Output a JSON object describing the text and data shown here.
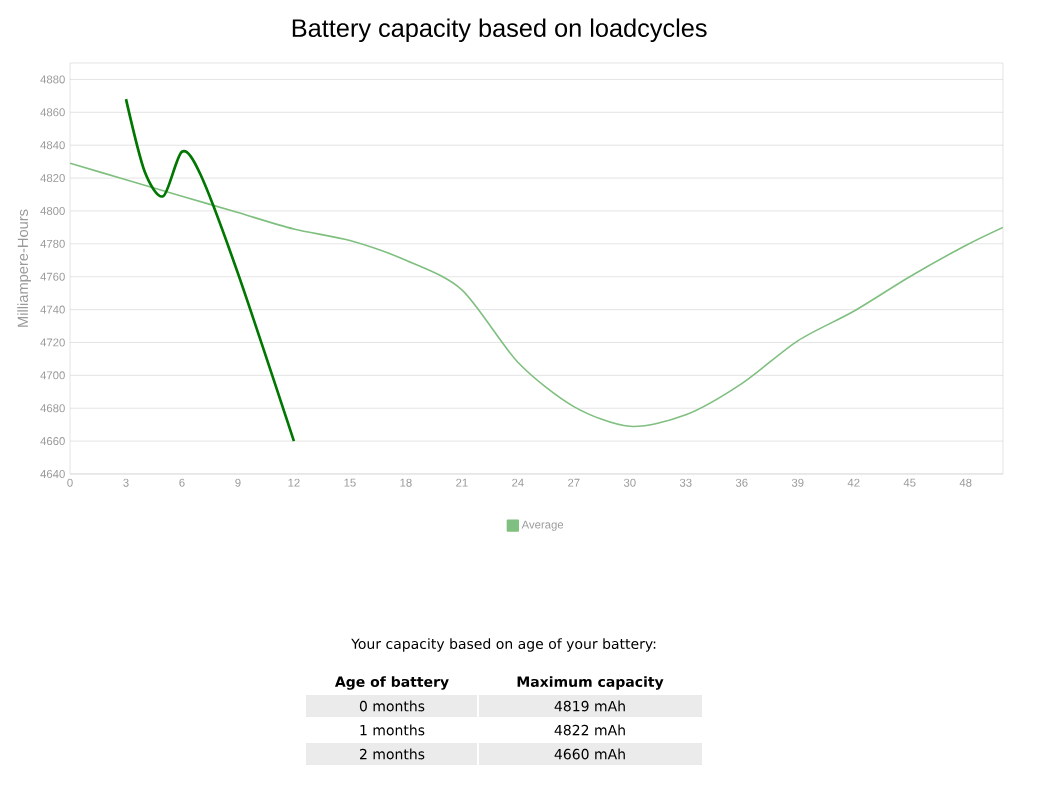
{
  "chart_data": [
    {
      "type": "line",
      "title": "Battery capacity based on loadcycles",
      "ylabel": "Milliampere-Hours",
      "xlim": [
        0,
        50
      ],
      "ylim": [
        4640,
        4890
      ],
      "xticks": [
        0,
        3,
        6,
        9,
        12,
        15,
        18,
        21,
        24,
        27,
        30,
        33,
        36,
        39,
        42,
        45,
        48
      ],
      "yticks": [
        4640,
        4660,
        4680,
        4700,
        4720,
        4740,
        4760,
        4780,
        4800,
        4820,
        4840,
        4860,
        4880
      ],
      "grid": "y",
      "legend": "bottom",
      "series": [
        {
          "name": "Average",
          "color": "#7fbf7f",
          "x": [
            0,
            3,
            6,
            9,
            12,
            15,
            18,
            21,
            24,
            27,
            30,
            33,
            36,
            39,
            42,
            45,
            48,
            50
          ],
          "values": [
            4829,
            4819,
            4809,
            4799,
            4789,
            4782,
            4770,
            4752,
            4708,
            4681,
            4669,
            4676,
            4695,
            4721,
            4739,
            4760,
            4779,
            4790
          ]
        },
        {
          "color": "#007700",
          "x": [
            3,
            4,
            5,
            6,
            7,
            9,
            12
          ],
          "values": [
            4868,
            4824,
            4809,
            4836,
            4822,
            4762,
            4660
          ]
        }
      ]
    },
    {
      "type": "other",
      "title": "Your capacity based on age of your battery:",
      "annotations": [
        "Age of battery",
        "Maximum capacity",
        "0 months",
        "4819 mAh",
        "1 months",
        "4822 mAh",
        "2 months",
        "4660 mAh"
      ]
    }
  ]
}
